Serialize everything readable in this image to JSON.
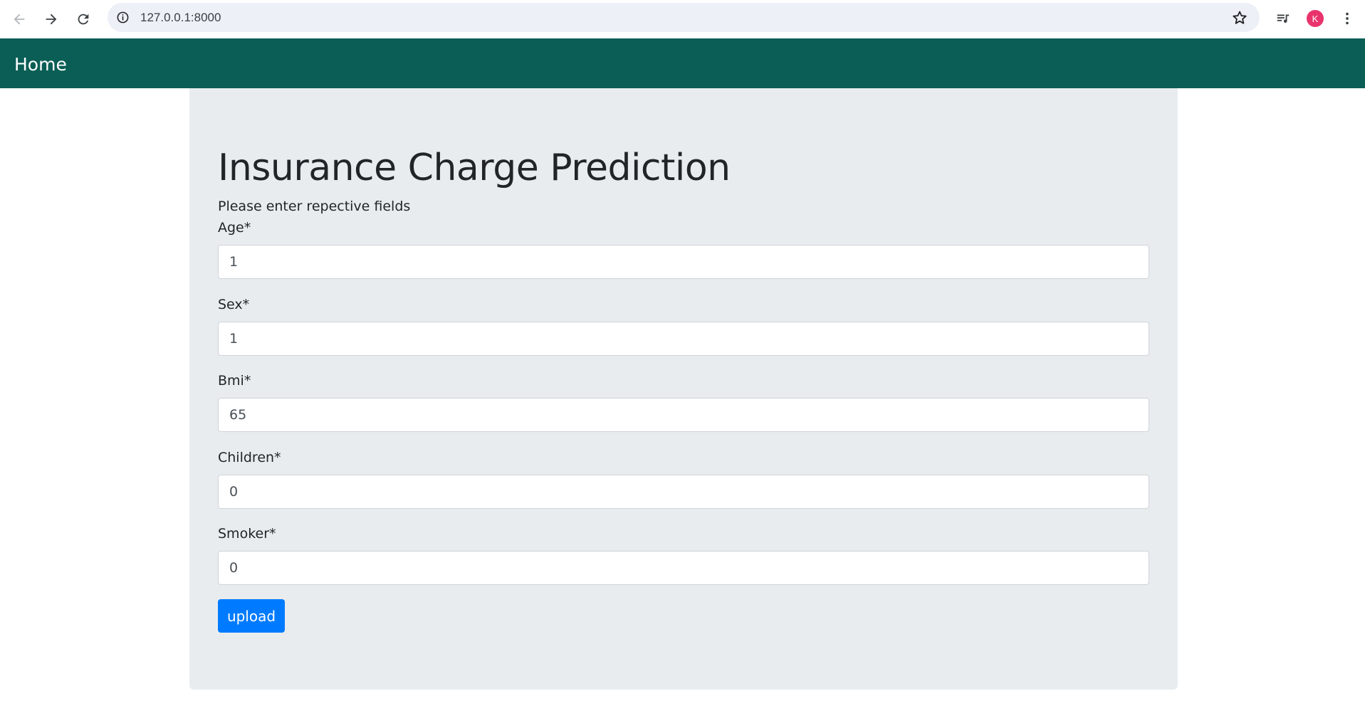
{
  "browser": {
    "url": "127.0.0.1:8000",
    "avatar_letter": "K",
    "icons": [
      "back-arrow-icon",
      "forward-arrow-icon",
      "reload-icon",
      "info-icon",
      "star-icon",
      "media-playlist-icon",
      "kebab-menu-icon"
    ],
    "avatar_color": "#e8336c"
  },
  "navbar": {
    "brand": "Home",
    "background_color": "#0a5e55"
  },
  "main": {
    "title": "Insurance Charge Prediction",
    "subtitle": "Please enter repective fields",
    "fields": [
      {
        "label": "Age*",
        "value": "1"
      },
      {
        "label": "Sex*",
        "value": "1"
      },
      {
        "label": "Bmi*",
        "value": "65"
      },
      {
        "label": "Children*",
        "value": "0"
      },
      {
        "label": "Smoker*",
        "value": "0"
      }
    ],
    "submit_label": "upload",
    "submit_color": "#007bff"
  }
}
